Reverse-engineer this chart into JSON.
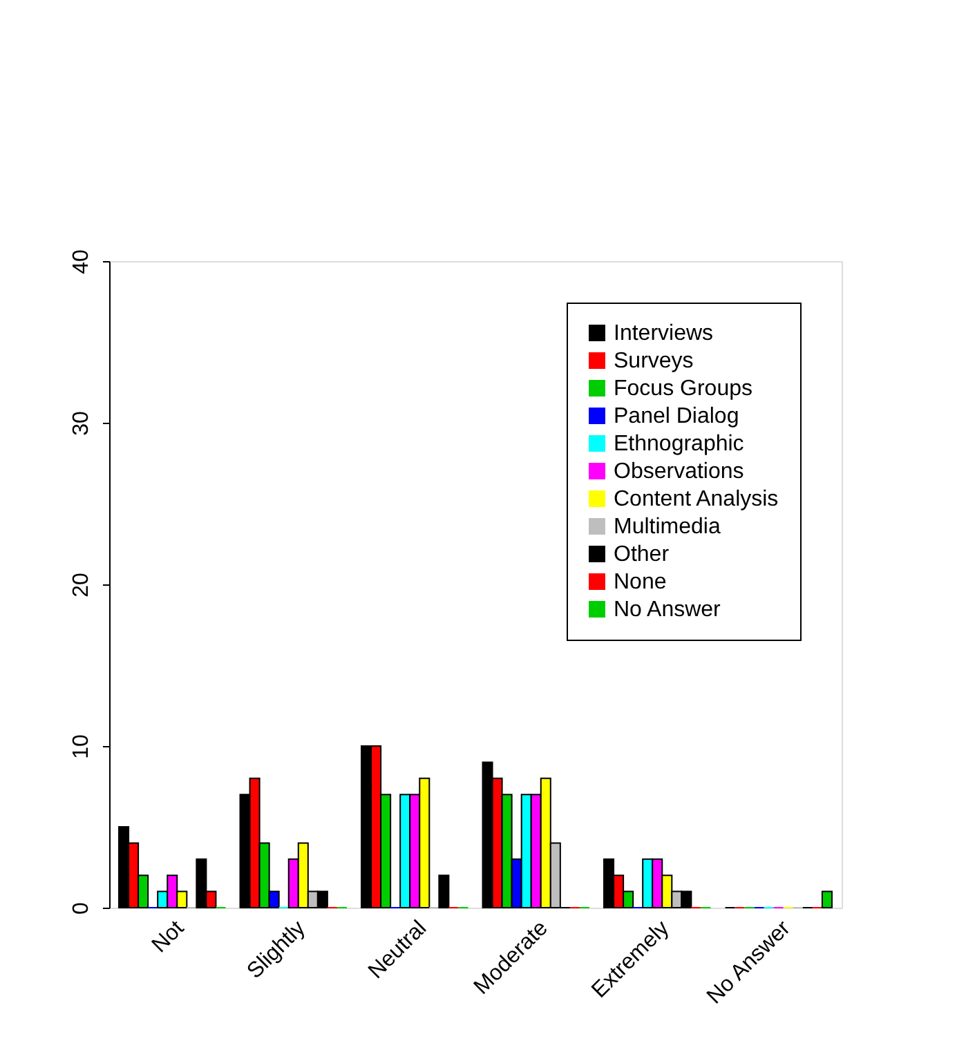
{
  "chart_data": {
    "type": "bar",
    "categories": [
      "Not",
      "Slightly",
      "Neutral",
      "Moderate",
      "Extremely",
      "No Answer"
    ],
    "series": [
      {
        "name": "Interviews",
        "color": "#000000",
        "values": [
          5,
          7,
          10,
          9,
          3,
          0
        ]
      },
      {
        "name": "Surveys",
        "color": "#ff0000",
        "values": [
          4,
          8,
          10,
          8,
          2,
          0
        ]
      },
      {
        "name": "Focus Groups",
        "color": "#00cd00",
        "values": [
          2,
          4,
          7,
          7,
          1,
          0
        ]
      },
      {
        "name": "Panel Dialog",
        "color": "#0000ff",
        "values": [
          0,
          1,
          0,
          3,
          0,
          0
        ]
      },
      {
        "name": "Ethnographic",
        "color": "#00ffff",
        "values": [
          1,
          0,
          7,
          7,
          3,
          0
        ]
      },
      {
        "name": "Observations",
        "color": "#ff00ff",
        "values": [
          2,
          3,
          7,
          7,
          3,
          0
        ]
      },
      {
        "name": "Content Analysis",
        "color": "#ffff00",
        "values": [
          1,
          4,
          8,
          8,
          2,
          0
        ]
      },
      {
        "name": "Multimedia",
        "color": "#bebebe",
        "values": [
          0,
          1,
          0,
          4,
          1,
          0
        ]
      },
      {
        "name": "Other",
        "color": "#000000",
        "values": [
          3,
          1,
          2,
          0,
          1,
          0
        ]
      },
      {
        "name": "None",
        "color": "#ff0000",
        "values": [
          1,
          0,
          0,
          0,
          0,
          0
        ]
      },
      {
        "name": "No Answer",
        "color": "#00cd00",
        "values": [
          0,
          0,
          0,
          0,
          0,
          1
        ]
      }
    ],
    "ylim": [
      0,
      40
    ],
    "yticks": [
      0,
      10,
      20,
      30,
      40
    ],
    "grid": false,
    "legend": "top right"
  }
}
